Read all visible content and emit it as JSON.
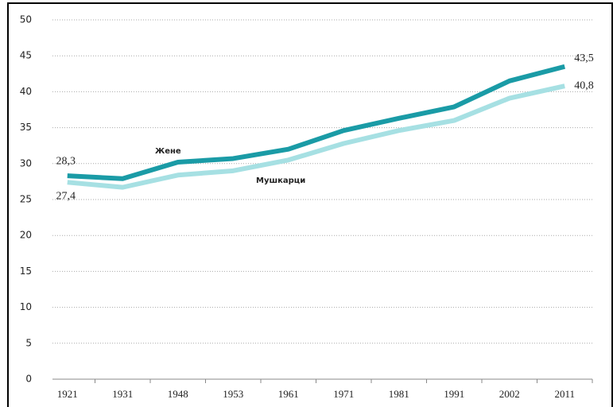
{
  "chart_data": {
    "type": "line",
    "categories": [
      "1921",
      "1931",
      "1948",
      "1953",
      "1961",
      "1971",
      "1981",
      "1991",
      "2002",
      "2011"
    ],
    "series": [
      {
        "name": "Жене",
        "color": "#1a9ba6",
        "values": [
          28.3,
          27.9,
          30.2,
          30.7,
          32.0,
          34.6,
          36.3,
          37.9,
          41.5,
          43.5
        ],
        "value_labels": [
          "28,3",
          null,
          null,
          null,
          null,
          null,
          null,
          null,
          null,
          "43,5"
        ]
      },
      {
        "name": "Мушкарци",
        "color": "#a6e0e3",
        "values": [
          27.4,
          26.7,
          28.4,
          29.0,
          30.5,
          32.8,
          34.6,
          36.0,
          39.1,
          40.8
        ],
        "value_labels": [
          "27,4",
          null,
          null,
          null,
          null,
          null,
          null,
          null,
          null,
          "40,8"
        ]
      }
    ],
    "ylim": [
      0,
      50
    ],
    "yticks": [
      0,
      5,
      10,
      15,
      20,
      25,
      30,
      35,
      40,
      45,
      50
    ],
    "grid": true
  }
}
